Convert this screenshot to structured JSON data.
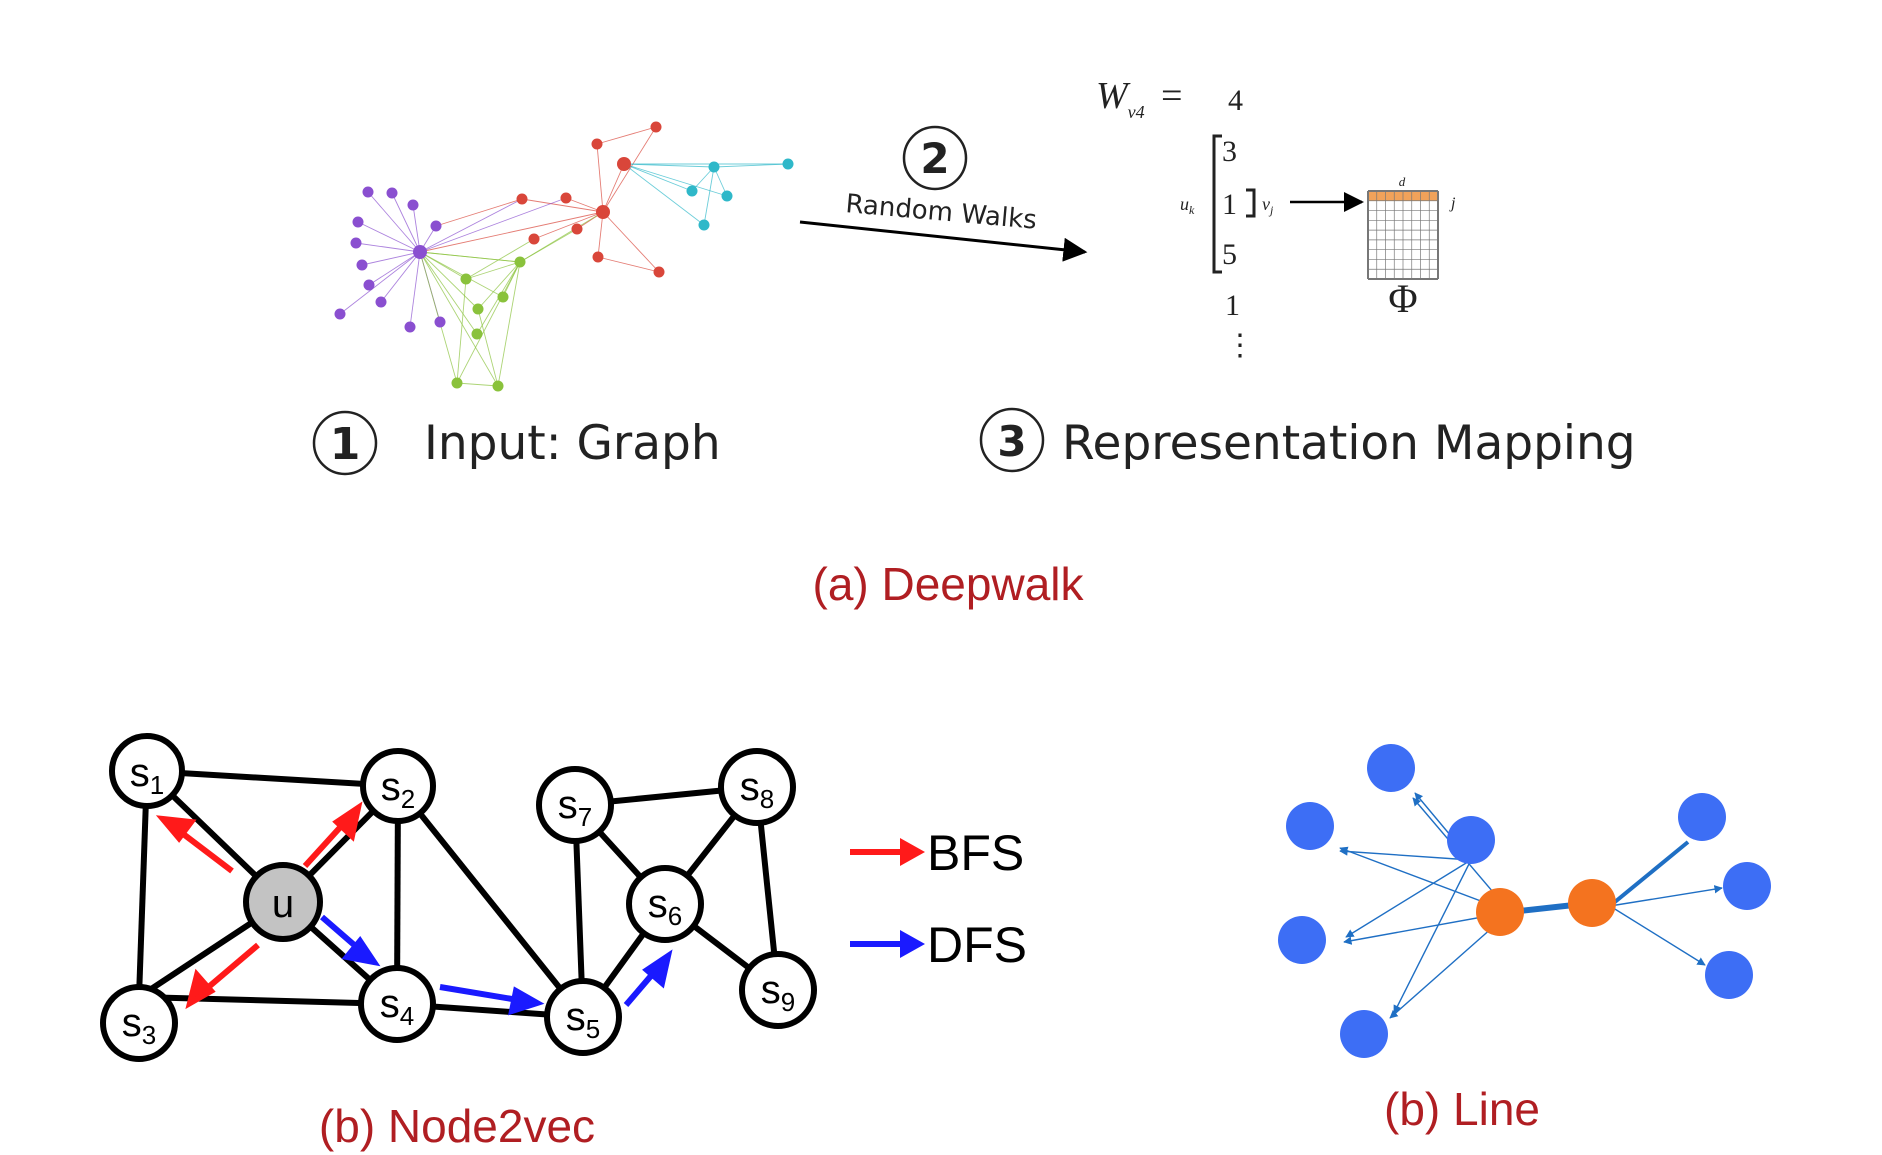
{
  "deepwalk": {
    "step1_number": "1",
    "step1_label": "Input: Graph",
    "step2_number": "2",
    "step2_label": "Random Walks",
    "step3_number": "3",
    "step3_label": "Representation Mapping",
    "formula_lhs": "W",
    "formula_sub": "v4",
    "formula_eq": "=",
    "walk_sequence": [
      "4",
      "3",
      "1",
      "5",
      "1",
      "⋮"
    ],
    "row_label": "u",
    "row_label_sub": "k",
    "col_label": "v",
    "col_label_sub": "j",
    "matrix_col_label": "d",
    "matrix_row_label": "j",
    "matrix_symbol": "Φ",
    "caption": "(a) Deepwalk"
  },
  "node2vec": {
    "center_node": "u",
    "nodes": [
      {
        "base": "s",
        "sub": "1"
      },
      {
        "base": "s",
        "sub": "2"
      },
      {
        "base": "s",
        "sub": "3"
      },
      {
        "base": "s",
        "sub": "4"
      },
      {
        "base": "s",
        "sub": "5"
      },
      {
        "base": "s",
        "sub": "6"
      },
      {
        "base": "s",
        "sub": "7"
      },
      {
        "base": "s",
        "sub": "8"
      },
      {
        "base": "s",
        "sub": "9"
      }
    ],
    "legend": [
      {
        "label": "BFS",
        "color": "#ff1a1a"
      },
      {
        "label": "DFS",
        "color": "#1a1aff"
      }
    ],
    "caption": "(b) Node2vec"
  },
  "line": {
    "node_color": "#3d6ef5",
    "center_color": "#f4731f",
    "edge_color": "#1f6fc4",
    "caption": "(b) Line"
  }
}
